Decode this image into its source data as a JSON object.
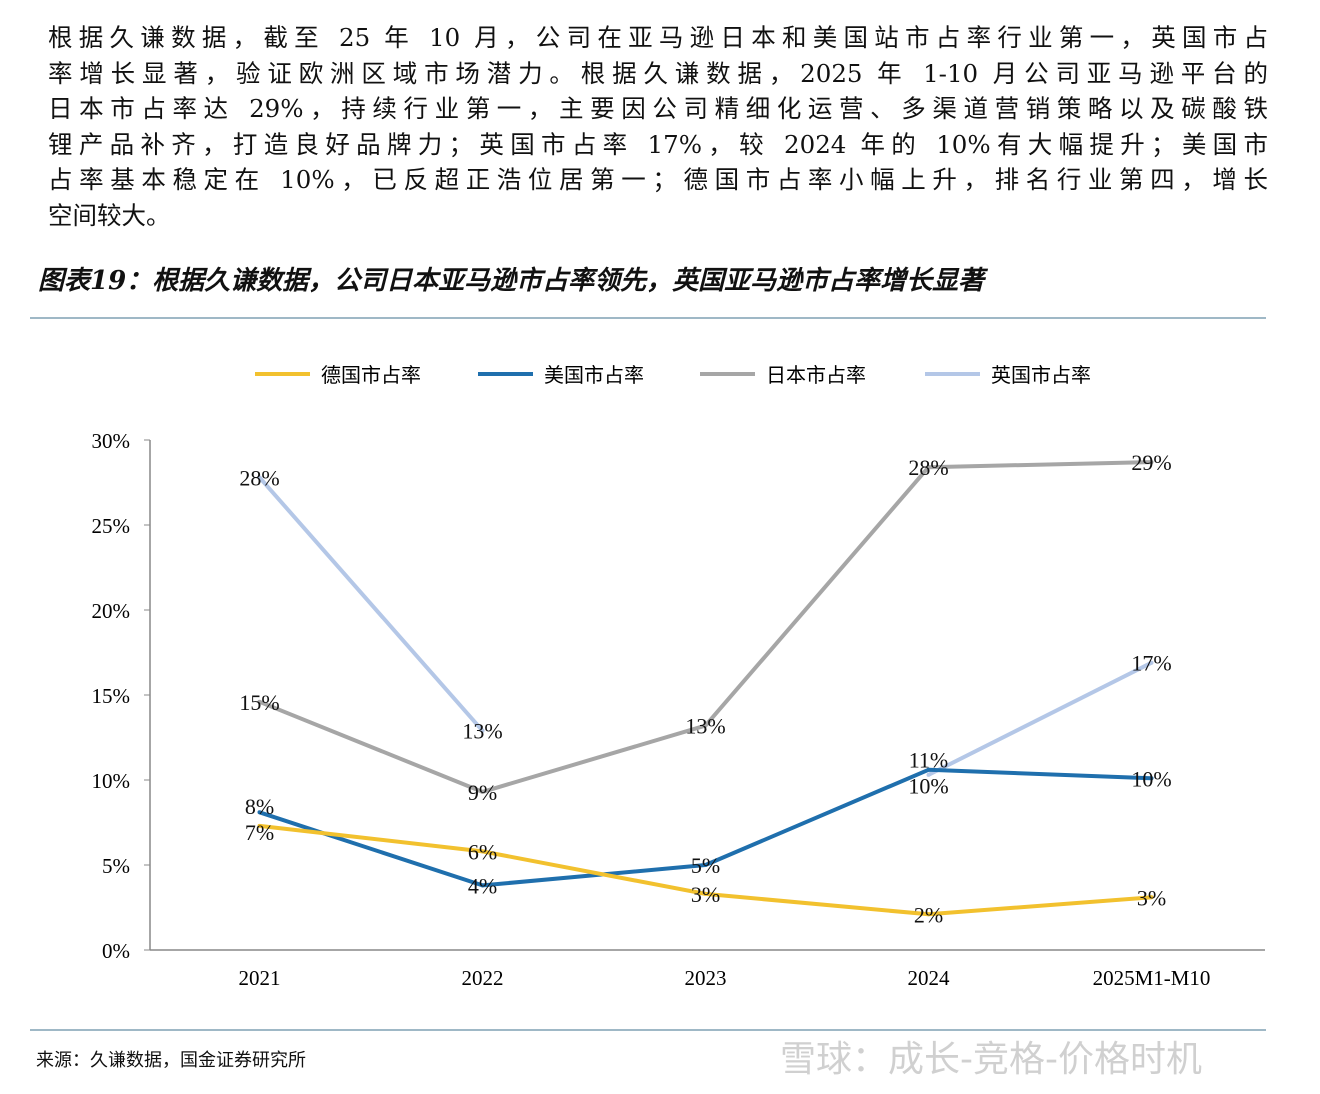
{
  "paragraph": [
    "根据久谦数据，截至 25 年 10 月，公司在亚马逊日本和美国站市占率行业第一，英国市占",
    "率增长显著，验证欧洲区域市场潜力。根据久谦数据，2025 年 1-10 月公司亚马逊平台的",
    "日本市占率达 29%，持续行业第一，主要因公司精细化运营、多渠道营销策略以及碳酸铁",
    "锂产品补齐，打造良好品牌力；英国市占率 17%，较 2024 年的 10%有大幅提升；美国市",
    "占率基本稳定在 10%，已反超正浩位居第一；德国市占率小幅上升，排名行业第四，增长",
    "空间较大。"
  ],
  "figure_title": "图表19：根据久谦数据，公司日本亚马逊市占率领先，英国亚马逊市占率增长显著",
  "source": "来源：久谦数据，国金证券研究所",
  "watermark": "雪球：成长-竞格-价格时机",
  "chart_data": {
    "type": "line",
    "categories": [
      "2021",
      "2022",
      "2023",
      "2024",
      "2025M1-M10"
    ],
    "ylim": [
      0,
      30
    ],
    "yticks": [
      "0%",
      "5%",
      "10%",
      "15%",
      "20%",
      "25%",
      "30%"
    ],
    "ytick_values": [
      0,
      5,
      10,
      15,
      20,
      25,
      30
    ],
    "legend_position": "top",
    "grid": false,
    "series": [
      {
        "name": "德国市占率",
        "color": "#f2c12e",
        "values": [
          7.3,
          5.8,
          3.3,
          2.1,
          3.1
        ],
        "labels": [
          "7%",
          "6%",
          "3%",
          "2%",
          "3%"
        ]
      },
      {
        "name": "美国市占率",
        "color": "#1f6fad",
        "values": [
          8.1,
          3.8,
          5.0,
          10.6,
          10.1
        ],
        "labels": [
          "8%",
          "4%",
          "5%",
          "11%",
          "10%"
        ]
      },
      {
        "name": "日本市占率",
        "color": "#a6a6a6",
        "values": [
          14.6,
          9.3,
          13.2,
          28.4,
          28.7
        ],
        "labels": [
          "15%",
          "9%",
          "13%",
          "28%",
          "29%"
        ]
      },
      {
        "name": "英国市占率",
        "color": "#b4c7e7",
        "values": [
          27.8,
          12.9,
          null,
          10.3,
          16.9
        ],
        "labels": [
          "28%",
          "13%",
          null,
          "10%",
          "17%"
        ]
      }
    ]
  }
}
